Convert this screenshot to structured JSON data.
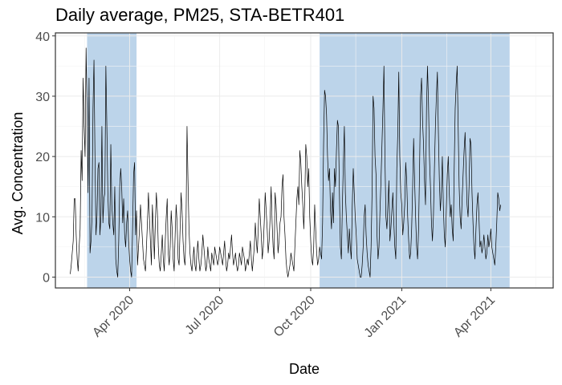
{
  "chart_data": {
    "type": "line",
    "title": "Daily average, PM25, STA-BETR401",
    "xlabel": "Date",
    "ylabel": "Avg. Concentration",
    "x_range": [
      "2020-01-17",
      "2021-06-03"
    ],
    "ylim": [
      -1.8,
      40.5
    ],
    "grid": true,
    "x_ticks": [
      {
        "date": "2020-04-01",
        "label": "Apr 2020"
      },
      {
        "date": "2020-07-01",
        "label": "Jul 2020"
      },
      {
        "date": "2020-10-01",
        "label": "Oct 2020"
      },
      {
        "date": "2021-01-01",
        "label": "Jan 2021"
      },
      {
        "date": "2021-04-01",
        "label": "Apr 2021"
      }
    ],
    "y_ticks": [
      0,
      10,
      20,
      30,
      40
    ],
    "shaded_periods": [
      {
        "start": "2020-02-18",
        "end": "2020-04-08"
      },
      {
        "start": "2020-10-10",
        "end": "2021-04-20"
      }
    ],
    "colors": {
      "line": "#000000",
      "shade": "#bcd4ea",
      "panel_border": "#333333",
      "grid": "#ebebeb"
    },
    "series": [
      {
        "start_date": "2020-02-01",
        "values": [
          0.5,
          2,
          4,
          6,
          13,
          13,
          7,
          3,
          1,
          5,
          8,
          21,
          16,
          33,
          25,
          20,
          38,
          28,
          14,
          33,
          4,
          6,
          10,
          28,
          36,
          20,
          7,
          10,
          18,
          19,
          7,
          10,
          25,
          9,
          13,
          14,
          35,
          25,
          14,
          9,
          8,
          22,
          12,
          9,
          7,
          15,
          3,
          1,
          0,
          6,
          15,
          18,
          15,
          9,
          13,
          7,
          5,
          9,
          11,
          6,
          3,
          1,
          0,
          8,
          17,
          19,
          7,
          11,
          2,
          5,
          8,
          12,
          9,
          6,
          3,
          2,
          1,
          5,
          9,
          14,
          10,
          6,
          2,
          12,
          8,
          3,
          9,
          14,
          11,
          5,
          2,
          1,
          4,
          7,
          3,
          1,
          6,
          10,
          13,
          4,
          2,
          5,
          11,
          8,
          3,
          1,
          7,
          12,
          9,
          3,
          2,
          8,
          14,
          11,
          6,
          3,
          2,
          9,
          25,
          16,
          8,
          4,
          2,
          1,
          3,
          5,
          2,
          1,
          4,
          6,
          3,
          1,
          2,
          4,
          7,
          5,
          3,
          1,
          2,
          5,
          3,
          2,
          1,
          4,
          3,
          2,
          5,
          4,
          3,
          2,
          3,
          5,
          4,
          3,
          2,
          4,
          6,
          3,
          1,
          2,
          4,
          3,
          5,
          7,
          4,
          2,
          3,
          4,
          2,
          1,
          2,
          4,
          3,
          2,
          5,
          4,
          3,
          1,
          2,
          3,
          2,
          4,
          6,
          3,
          1,
          3,
          5,
          9,
          6,
          4,
          8,
          13,
          10,
          7,
          3,
          5,
          9,
          14,
          11,
          8,
          4,
          6,
          10,
          15,
          9,
          5,
          3,
          14,
          12,
          8,
          4,
          6,
          9,
          10,
          15,
          17,
          10,
          7,
          3,
          1,
          0,
          1,
          2,
          4,
          3,
          2,
          1,
          5,
          9,
          13,
          15,
          12,
          21,
          19,
          15,
          12,
          8,
          13,
          22,
          20,
          15,
          18,
          10,
          6,
          3,
          2,
          5,
          12,
          8,
          4,
          2,
          3,
          5,
          4,
          3,
          9,
          22,
          31,
          30,
          27,
          20,
          16,
          18,
          11,
          8,
          14,
          9,
          18,
          15,
          21,
          26,
          25,
          14,
          5,
          3,
          12,
          19,
          25,
          14,
          10,
          7,
          4,
          8,
          5,
          3,
          12,
          18,
          14,
          10,
          7,
          3,
          2,
          1,
          0,
          0,
          2,
          5,
          10,
          12,
          7,
          4,
          2,
          1,
          0,
          5,
          14,
          30,
          28,
          20,
          17,
          7,
          3,
          5,
          11,
          16,
          22,
          28,
          35,
          20,
          10,
          8,
          12,
          16,
          6,
          8,
          11,
          14,
          9,
          5,
          3,
          18,
          24,
          34,
          20,
          14,
          12,
          7,
          9,
          12,
          19,
          16,
          10,
          6,
          3,
          4,
          8,
          15,
          23,
          16,
          10,
          5,
          3,
          8,
          18,
          30,
          33,
          26,
          22,
          16,
          12,
          28,
          35,
          29,
          20,
          15,
          9,
          6,
          10,
          18,
          25,
          30,
          34,
          24,
          16,
          11,
          14,
          20,
          12,
          7,
          5,
          11,
          17,
          20,
          14,
          10,
          12,
          8,
          6,
          18,
          28,
          32,
          35,
          25,
          15,
          10,
          8,
          13,
          17,
          21,
          24,
          18,
          12,
          10,
          15,
          23,
          22,
          14,
          9,
          5,
          3,
          8,
          12,
          14,
          10,
          5,
          6,
          4,
          5,
          7,
          5,
          3,
          4,
          7,
          5,
          6,
          8,
          5,
          4,
          3,
          2,
          5,
          9,
          14,
          13,
          11,
          12
        ]
      }
    ]
  }
}
